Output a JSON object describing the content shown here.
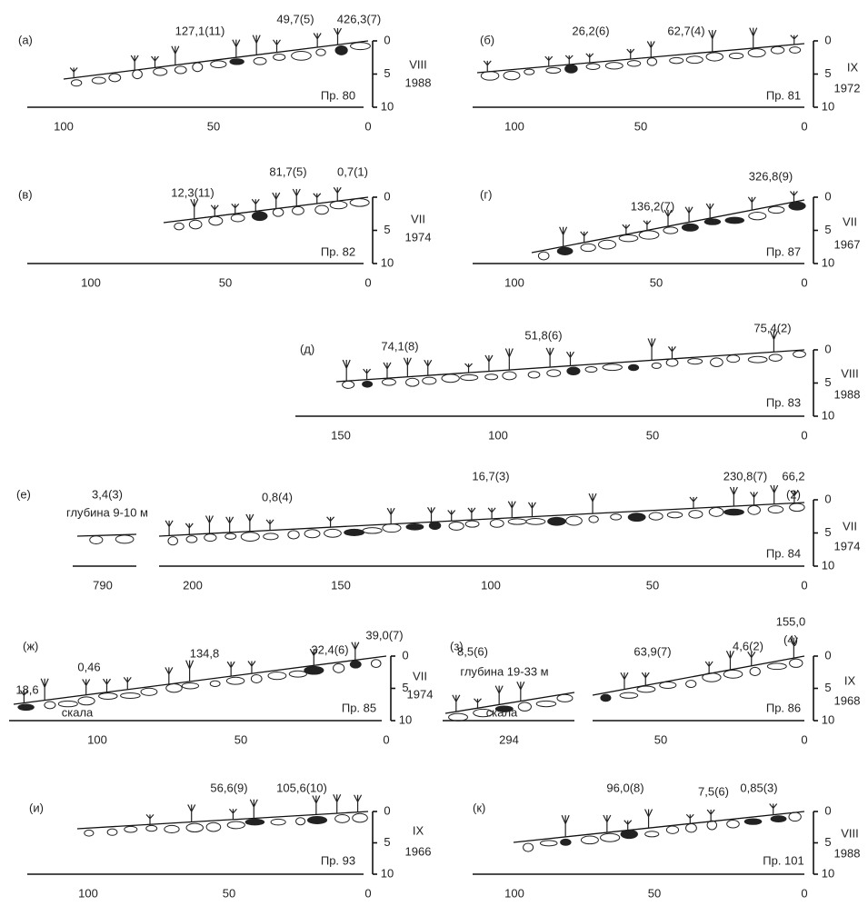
{
  "panels": [
    {
      "letter": "(а)",
      "annotations": [
        "127,1(11)",
        "49,7(5)",
        "426,3(7)"
      ],
      "month": "VIII",
      "year": "1988",
      "profile": "Пр. 80",
      "x_ticks": [
        "100",
        "50",
        "0"
      ],
      "depth_ticks": [
        "0",
        "5",
        "10"
      ]
    },
    {
      "letter": "(б)",
      "annotations": [
        "26,2(6)",
        "62,7(4)"
      ],
      "month": "IX",
      "year": "1972",
      "profile": "Пр. 81",
      "x_ticks": [
        "100",
        "50",
        "0"
      ],
      "depth_ticks": [
        "0",
        "5",
        "10"
      ]
    },
    {
      "letter": "(в)",
      "annotations": [
        "12,3(11)",
        "81,7(5)",
        "0,7(1)"
      ],
      "month": "VII",
      "year": "1974",
      "profile": "Пр. 82",
      "x_ticks": [
        "100",
        "50",
        "0"
      ],
      "depth_ticks": [
        "0",
        "5",
        "10"
      ]
    },
    {
      "letter": "(г)",
      "annotations": [
        "326,8(9)",
        "136,2(7)"
      ],
      "month": "VII",
      "year": "1967",
      "profile": "Пр. 87",
      "x_ticks": [
        "100",
        "50",
        "0"
      ],
      "depth_ticks": [
        "0",
        "5",
        "10"
      ]
    },
    {
      "letter": "(д)",
      "annotations": [
        "74,1(8)",
        "51,8(6)",
        "75,4(2)"
      ],
      "month": "VIII",
      "year": "1988",
      "profile": "Пр. 83",
      "x_ticks": [
        "150",
        "100",
        "50",
        "0"
      ],
      "depth_ticks": [
        "0",
        "5",
        "10"
      ]
    },
    {
      "letter": "(е)",
      "annotations": [
        "3,4(3)",
        "глубина 9-10 м",
        "0,8(4)",
        "16,7(3)",
        "230,8(7)",
        "66,2",
        "(2)"
      ],
      "month": "VII",
      "year": "1974",
      "profile": "Пр. 84",
      "x_ticks": [
        "200",
        "150",
        "100",
        "50",
        "0"
      ],
      "depth_ticks": [
        "0",
        "5",
        "10"
      ],
      "inset_tick": "790"
    },
    {
      "letter": "(ж)",
      "annotations": [
        "18,6",
        "0,46",
        "134,8",
        "32,4(6)",
        "39,0(7)"
      ],
      "month": "VII",
      "year": "1974",
      "profile": "Пр. 85",
      "x_ticks": [
        "100",
        "50",
        "0"
      ],
      "depth_ticks": [
        "0",
        "5",
        "10"
      ],
      "substrate": "скала"
    },
    {
      "letter": "(з)",
      "annotations": [
        "8,5(6)",
        "глубина 19-33 м",
        "63,9(7)",
        "4,6(2)",
        "155,0",
        "(4)"
      ],
      "month": "IX",
      "year": "1968",
      "profile": "Пр. 86",
      "x_ticks": [
        "50",
        "0"
      ],
      "depth_ticks": [
        "0",
        "5",
        "10"
      ],
      "inset_tick": "294",
      "substrate": "скала"
    },
    {
      "letter": "(и)",
      "annotations": [
        "56,6(9)",
        "105,6(10)"
      ],
      "month": "IX",
      "year": "1966",
      "profile": "Пр. 93",
      "x_ticks": [
        "100",
        "50",
        "0"
      ],
      "depth_ticks": [
        "0",
        "5",
        "10"
      ]
    },
    {
      "letter": "(к)",
      "annotations": [
        "96,0(8)",
        "7,5(6)",
        "0,85(3)"
      ],
      "month": "VIII",
      "year": "1988",
      "profile": "Пр. 101",
      "x_ticks": [
        "100",
        "50",
        "0"
      ],
      "depth_ticks": [
        "0",
        "5",
        "10"
      ]
    }
  ]
}
